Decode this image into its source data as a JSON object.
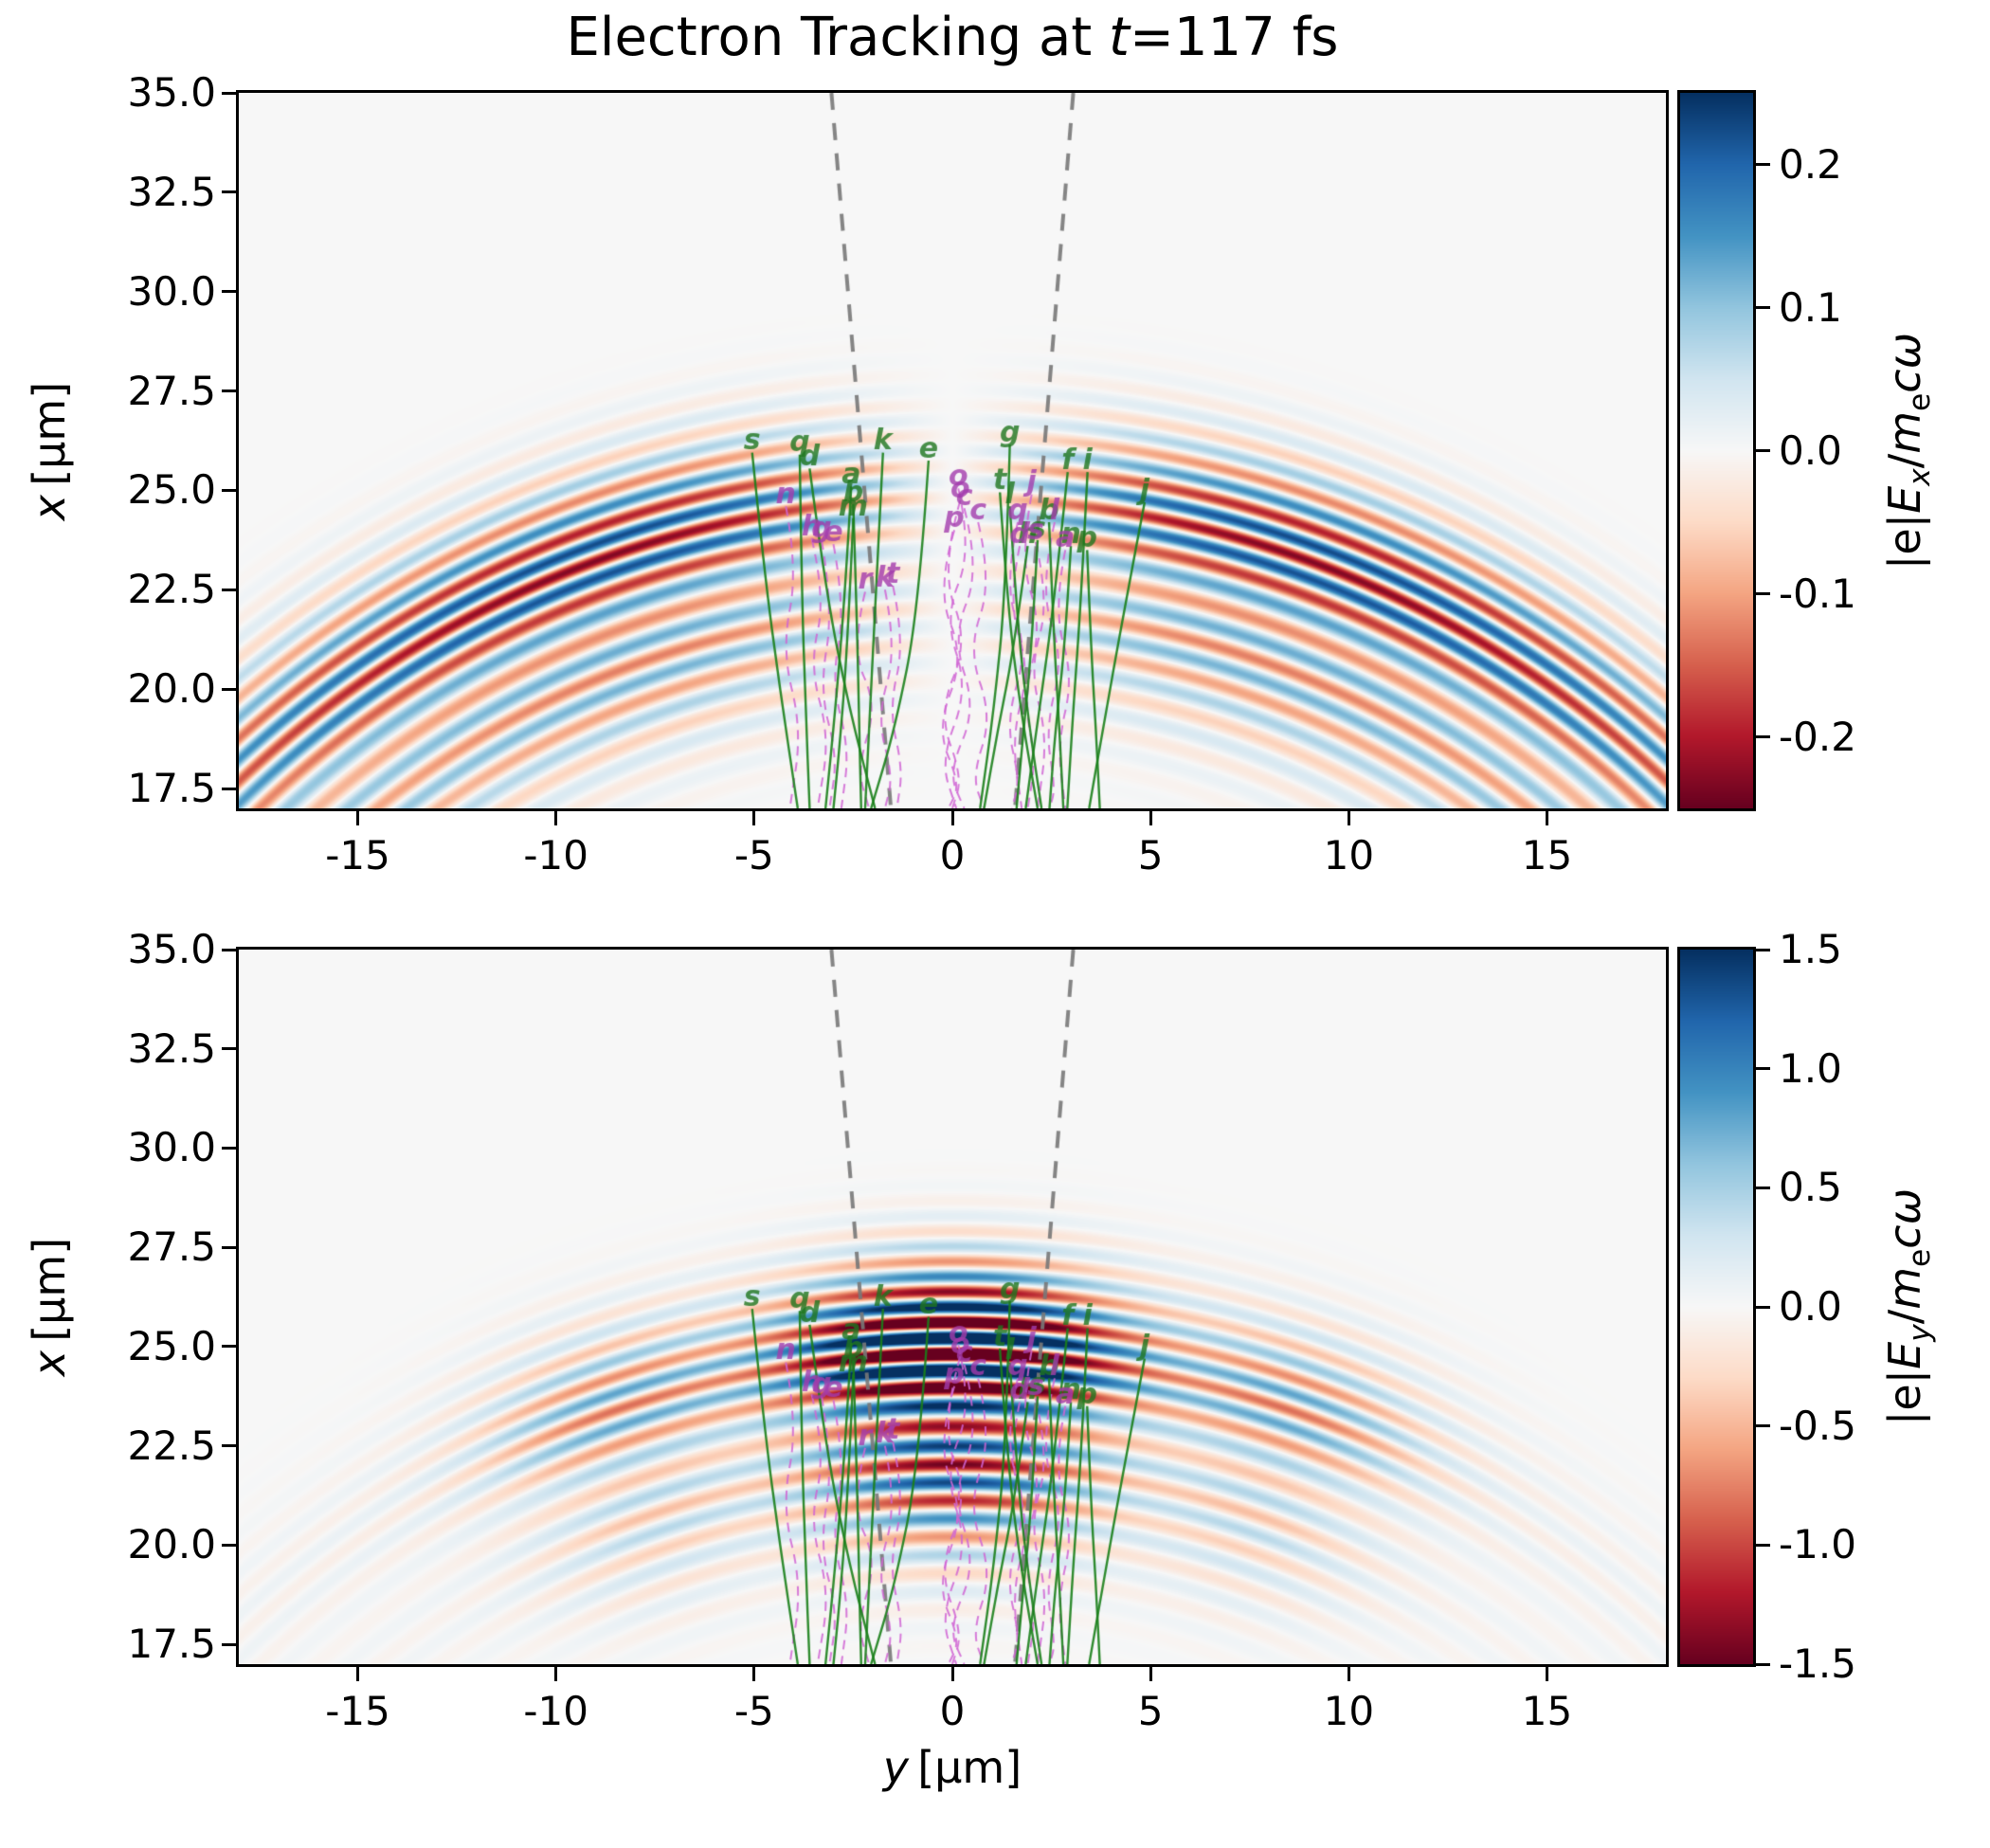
{
  "chart_data": {
    "type": "heatmap",
    "title": {
      "pre": "Electron Tracking at ",
      "var": "t",
      "post": "=117 fs"
    },
    "x_axis": {
      "label_var": "y",
      "label_unit": "[µm]",
      "range": [
        -18,
        18
      ],
      "ticks": [
        {
          "v": -15,
          "label": "-15"
        },
        {
          "v": -10,
          "label": "-10"
        },
        {
          "v": -5,
          "label": "-5"
        },
        {
          "v": 0,
          "label": "0"
        },
        {
          "v": 5,
          "label": "5"
        },
        {
          "v": 10,
          "label": "10"
        },
        {
          "v": 15,
          "label": "15"
        }
      ]
    },
    "y_axis": {
      "label_var": "x",
      "label_unit": "[µm]",
      "range": [
        17,
        35
      ],
      "ticks": [
        {
          "v": 35.0,
          "label": "35.0"
        },
        {
          "v": 32.5,
          "label": "32.5"
        },
        {
          "v": 30.0,
          "label": "30.0"
        },
        {
          "v": 27.5,
          "label": "27.5"
        },
        {
          "v": 25.0,
          "label": "25.0"
        },
        {
          "v": 22.5,
          "label": "22.5"
        },
        {
          "v": 20.0,
          "label": "20.0"
        },
        {
          "v": 17.5,
          "label": "17.5"
        }
      ]
    },
    "colors": {
      "trajectory_green": "rgba(25,128,25,0.9)",
      "trajectory_magenta": "rgba(208,101,212,0.85)",
      "cone_gray": "rgba(120,120,120,0.9)",
      "label_green": "rgba(30,118,30,0.8)",
      "label_magenta": "rgba(163,60,173,0.8)",
      "rdbu_stops": [
        [
          103,
          0,
          31
        ],
        [
          178,
          24,
          43
        ],
        [
          214,
          96,
          77
        ],
        [
          244,
          165,
          130
        ],
        [
          253,
          219,
          199
        ],
        [
          247,
          247,
          247
        ],
        [
          209,
          229,
          240
        ],
        [
          146,
          197,
          222
        ],
        [
          67,
          147,
          195
        ],
        [
          33,
          102,
          172
        ],
        [
          5,
          48,
          97
        ]
      ]
    },
    "panels": [
      {
        "name": "Ex",
        "colorbar": {
          "vmin": -0.25,
          "vmax": 0.25,
          "ticks": [
            {
              "v": 0.2,
              "label": "0.2"
            },
            {
              "v": 0.1,
              "label": "0.1"
            },
            {
              "v": 0.0,
              "label": "0.0"
            },
            {
              "v": -0.1,
              "label": "-0.1"
            },
            {
              "v": -0.2,
              "label": "-0.2"
            }
          ],
          "label": {
            "pre": "|e|",
            "var1": "E",
            "sub1": "x",
            "mid": "/",
            "var2": "m",
            "sub2": "e",
            "post": "cω"
          }
        },
        "field": {
          "mode": "notch",
          "focus_v": -1.5,
          "shells": [
            {
              "rc": 26.8,
              "sigma": 1.9,
              "lambda": 0.78,
              "amp": 0.65,
              "phase": 0.0
            },
            {
              "rc": 24.2,
              "sigma": 2.6,
              "lambda": 0.92,
              "amp": 0.55,
              "phase": 1.0
            }
          ],
          "angular": {
            "tanh_scale": 1.3,
            "tanh_width": 0.22,
            "fall_sigma": 0.95
          }
        }
      },
      {
        "name": "Ey",
        "colorbar": {
          "vmin": -1.5,
          "vmax": 1.5,
          "ticks": [
            {
              "v": 1.5,
              "label": "1.5"
            },
            {
              "v": 1.0,
              "label": "1.0"
            },
            {
              "v": 0.5,
              "label": "0.5"
            },
            {
              "v": 0.0,
              "label": "0.0"
            },
            {
              "v": -0.5,
              "label": "-0.5"
            },
            {
              "v": -1.0,
              "label": "-1.0"
            },
            {
              "v": -1.5,
              "label": "-1.5"
            }
          ],
          "label": {
            "pre": "|e|",
            "var1": "E",
            "sub1": "y",
            "mid": "/",
            "var2": "m",
            "sub2": "e",
            "post": "cω"
          }
        },
        "field": {
          "mode": "peaks",
          "focus_v": -1.5,
          "shells": [
            {
              "rc": 26.8,
              "sigma": 1.9,
              "lambda": 0.78,
              "amp": 0.65,
              "phase": 0.0
            },
            {
              "rc": 24.2,
              "sigma": 2.6,
              "lambda": 0.92,
              "amp": 0.55,
              "phase": 1.0
            }
          ],
          "angular": {
            "gaussians": [
              {
                "a": 1.9,
                "mu": 0.0,
                "s": 0.15
              },
              {
                "a": 0.5,
                "mu": 0.33,
                "s": 0.13
              },
              {
                "a": 0.12,
                "mu": 0.0,
                "s": 0.85
              }
            ]
          }
        }
      }
    ],
    "cone_lines": [
      {
        "pts": [
          [
            -3.05,
            35
          ],
          [
            -1.55,
            17
          ]
        ]
      },
      {
        "pts": [
          [
            3.05,
            35
          ],
          [
            1.58,
            17
          ]
        ]
      }
    ],
    "trajectories": [
      {
        "label": "s",
        "color": "green",
        "pts": [
          [
            -5.05,
            25.95
          ],
          [
            -4.75,
            23.0
          ],
          [
            -4.35,
            20.0
          ],
          [
            -3.9,
            17.0
          ]
        ]
      },
      {
        "label": "q",
        "color": "green",
        "pts": [
          [
            -3.85,
            25.9
          ],
          [
            -3.8,
            22.5
          ],
          [
            -3.7,
            19.5
          ],
          [
            -3.6,
            17.0
          ]
        ]
      },
      {
        "label": "d",
        "color": "green",
        "pts": [
          [
            -3.6,
            25.55
          ],
          [
            -3.2,
            22.5
          ],
          [
            -2.6,
            19.5
          ],
          [
            -1.95,
            17.0
          ]
        ]
      },
      {
        "label": "a",
        "color": "green",
        "pts": [
          [
            -2.55,
            25.1
          ],
          [
            -2.7,
            22.5
          ],
          [
            -2.95,
            19.5
          ],
          [
            -3.2,
            17.0
          ]
        ]
      },
      {
        "label": "b",
        "color": "green",
        "pts": [
          [
            -2.5,
            24.65
          ],
          [
            -2.4,
            21.5
          ],
          [
            -2.35,
            19.0
          ],
          [
            -2.3,
            17.0
          ]
        ]
      },
      {
        "label": "m",
        "color": "green",
        "pts": [
          [
            -2.5,
            24.3
          ],
          [
            -2.65,
            21.0
          ],
          [
            -2.85,
            18.5
          ],
          [
            -3.0,
            17.0
          ]
        ]
      },
      {
        "label": "k",
        "color": "green",
        "pts": [
          [
            -1.75,
            25.95
          ],
          [
            -1.95,
            22.0
          ],
          [
            -2.1,
            19.0
          ],
          [
            -2.2,
            17.0
          ]
        ]
      },
      {
        "label": "e",
        "color": "green",
        "pts": [
          [
            -0.6,
            25.75
          ],
          [
            -0.85,
            22.0
          ],
          [
            -1.45,
            19.0
          ],
          [
            -2.05,
            17.0
          ]
        ]
      },
      {
        "label": "g",
        "color": "green",
        "pts": [
          [
            1.45,
            26.15
          ],
          [
            1.35,
            22.5
          ],
          [
            1.05,
            19.5
          ],
          [
            0.7,
            17.0
          ]
        ]
      },
      {
        "label": "t",
        "color": "green",
        "pts": [
          [
            1.2,
            24.95
          ],
          [
            1.4,
            22.0
          ],
          [
            1.75,
            19.3
          ],
          [
            2.15,
            17.0
          ]
        ]
      },
      {
        "label": "l",
        "color": "green",
        "pts": [
          [
            1.45,
            24.6
          ],
          [
            1.65,
            21.5
          ],
          [
            1.95,
            19.0
          ],
          [
            2.25,
            17.0
          ]
        ]
      },
      {
        "label": "f",
        "color": "green",
        "pts": [
          [
            2.91,
            25.46
          ],
          [
            2.55,
            22.0
          ],
          [
            2.15,
            19.2
          ],
          [
            1.85,
            17.0
          ]
        ]
      },
      {
        "label": "i",
        "color": "green",
        "pts": [
          [
            3.41,
            25.46
          ],
          [
            3.25,
            22.3
          ],
          [
            3.05,
            19.5
          ],
          [
            2.9,
            17.0
          ]
        ]
      },
      {
        "label": "j",
        "color": "green",
        "pts": [
          [
            4.85,
            24.7
          ],
          [
            4.3,
            21.8
          ],
          [
            3.8,
            19.0
          ],
          [
            3.45,
            17.0
          ]
        ]
      },
      {
        "label": "h",
        "color": "green",
        "pts": [
          [
            1.9,
            23.6
          ],
          [
            1.55,
            21.0
          ],
          [
            1.15,
            19.0
          ],
          [
            0.8,
            17.0
          ]
        ]
      },
      {
        "label": "s",
        "color": "green",
        "pts": [
          [
            2.15,
            23.75
          ],
          [
            2.0,
            21.0
          ],
          [
            1.78,
            18.8
          ],
          [
            1.62,
            17.0
          ]
        ]
      },
      {
        "label": "n",
        "color": "green",
        "pts": [
          [
            2.99,
            23.6
          ],
          [
            2.85,
            21.2
          ],
          [
            2.6,
            19.0
          ],
          [
            2.45,
            17.0
          ]
        ]
      },
      {
        "label": "p",
        "color": "green",
        "pts": [
          [
            3.4,
            23.5
          ],
          [
            3.5,
            21.0
          ],
          [
            3.62,
            19.0
          ],
          [
            3.72,
            17.0
          ]
        ]
      },
      {
        "label": "b",
        "color": "green",
        "pts": [
          [
            2.44,
            24.2
          ],
          [
            2.55,
            21.5
          ],
          [
            2.7,
            19.0
          ],
          [
            2.8,
            17.0
          ]
        ]
      },
      {
        "label": "n",
        "color": "magenta",
        "pts": [
          [
            -4.2,
            24.6
          ],
          [
            -3.9,
            23.0
          ],
          [
            -4.3,
            21.0
          ],
          [
            -3.8,
            19.0
          ],
          [
            -4.1,
            17.0
          ]
        ]
      },
      {
        "label": "h",
        "color": "magenta",
        "pts": [
          [
            -3.55,
            23.8
          ],
          [
            -3.2,
            22.3
          ],
          [
            -3.6,
            20.6
          ],
          [
            -3.1,
            18.8
          ],
          [
            -3.4,
            17.0
          ]
        ]
      },
      {
        "label": "g",
        "color": "magenta",
        "pts": [
          [
            -3.3,
            23.75
          ],
          [
            -3.0,
            22.0
          ],
          [
            -3.35,
            20.0
          ],
          [
            -2.9,
            18.3
          ],
          [
            -3.1,
            17.0
          ]
        ]
      },
      {
        "label": "e",
        "color": "magenta",
        "pts": [
          [
            -3.0,
            23.65
          ],
          [
            -2.7,
            22.0
          ],
          [
            -3.05,
            20.2
          ],
          [
            -2.6,
            18.5
          ],
          [
            -2.8,
            17.0
          ]
        ]
      },
      {
        "label": "r",
        "color": "magenta",
        "pts": [
          [
            -2.2,
            22.45
          ],
          [
            -2.55,
            21.0
          ],
          [
            -1.9,
            19.6
          ],
          [
            -2.4,
            18.0
          ],
          [
            -2.1,
            17.0
          ]
        ]
      },
      {
        "label": "k",
        "color": "magenta",
        "pts": [
          [
            -1.7,
            22.5
          ],
          [
            -1.4,
            21.0
          ],
          [
            -1.9,
            19.3
          ],
          [
            -1.5,
            17.8
          ],
          [
            -1.7,
            17.0
          ]
        ]
      },
      {
        "label": "t",
        "color": "magenta",
        "pts": [
          [
            -1.5,
            22.6
          ],
          [
            -1.2,
            21.2
          ],
          [
            -1.6,
            19.5
          ],
          [
            -1.25,
            18.0
          ],
          [
            -1.4,
            17.0
          ]
        ]
      },
      {
        "label": "o",
        "color": "magenta",
        "pts": [
          [
            0.15,
            25.05
          ],
          [
            0.5,
            23.5
          ],
          [
            -0.2,
            21.8
          ],
          [
            0.4,
            20.0
          ],
          [
            -0.3,
            18.2
          ],
          [
            0.1,
            17.0
          ]
        ]
      },
      {
        "label": "o",
        "color": "magenta",
        "pts": [
          [
            0.2,
            24.75
          ],
          [
            -0.3,
            23.0
          ],
          [
            0.4,
            21.2
          ],
          [
            -0.35,
            19.4
          ],
          [
            0.25,
            17.8
          ],
          [
            0.0,
            17.0
          ]
        ]
      },
      {
        "label": "c",
        "color": "magenta",
        "pts": [
          [
            0.3,
            24.55
          ],
          [
            0.7,
            23.0
          ],
          [
            0.0,
            21.3
          ],
          [
            0.6,
            19.5
          ],
          [
            -0.1,
            17.9
          ],
          [
            0.3,
            17.0
          ]
        ]
      },
      {
        "label": "p",
        "color": "magenta",
        "pts": [
          [
            0.05,
            24.0
          ],
          [
            -0.4,
            22.5
          ],
          [
            0.3,
            20.8
          ],
          [
            -0.4,
            19.0
          ],
          [
            0.2,
            17.6
          ],
          [
            -0.1,
            17.0
          ]
        ]
      },
      {
        "label": "c",
        "color": "magenta",
        "pts": [
          [
            0.65,
            24.2
          ],
          [
            1.0,
            22.7
          ],
          [
            0.4,
            21.0
          ],
          [
            1.0,
            19.3
          ],
          [
            0.5,
            17.8
          ],
          [
            0.8,
            17.0
          ]
        ]
      },
      {
        "label": "q",
        "color": "magenta",
        "pts": [
          [
            1.65,
            24.2
          ],
          [
            1.3,
            22.6
          ],
          [
            1.9,
            21.0
          ],
          [
            1.35,
            19.2
          ],
          [
            1.7,
            17.7
          ],
          [
            1.5,
            17.0
          ]
        ]
      },
      {
        "label": "j",
        "color": "magenta",
        "pts": [
          [
            2.0,
            24.9
          ],
          [
            1.7,
            23.3
          ],
          [
            2.25,
            21.6
          ],
          [
            1.8,
            19.8
          ],
          [
            2.1,
            18.2
          ],
          [
            1.9,
            17.0
          ]
        ]
      },
      {
        "label": "d",
        "color": "magenta",
        "pts": [
          [
            1.7,
            23.6
          ],
          [
            1.4,
            22.2
          ],
          [
            1.95,
            20.5
          ],
          [
            1.5,
            18.8
          ],
          [
            1.75,
            17.0
          ]
        ]
      },
      {
        "label": "a",
        "color": "magenta",
        "pts": [
          [
            2.85,
            23.5
          ],
          [
            2.55,
            22.0
          ],
          [
            3.05,
            20.3
          ],
          [
            2.65,
            18.6
          ],
          [
            2.85,
            17.0
          ]
        ]
      },
      {
        "label": "s",
        "color": "magenta",
        "pts": [
          [
            2.1,
            23.7
          ],
          [
            2.45,
            22.2
          ],
          [
            1.95,
            20.5
          ],
          [
            2.4,
            18.8
          ],
          [
            2.15,
            17.0
          ]
        ]
      },
      {
        "label": "l",
        "color": "magenta",
        "pts": [
          [
            2.58,
            24.2
          ],
          [
            2.2,
            22.5
          ],
          [
            2.8,
            20.8
          ],
          [
            2.35,
            19.0
          ],
          [
            2.6,
            17.5
          ],
          [
            2.45,
            17.0
          ]
        ]
      }
    ]
  }
}
